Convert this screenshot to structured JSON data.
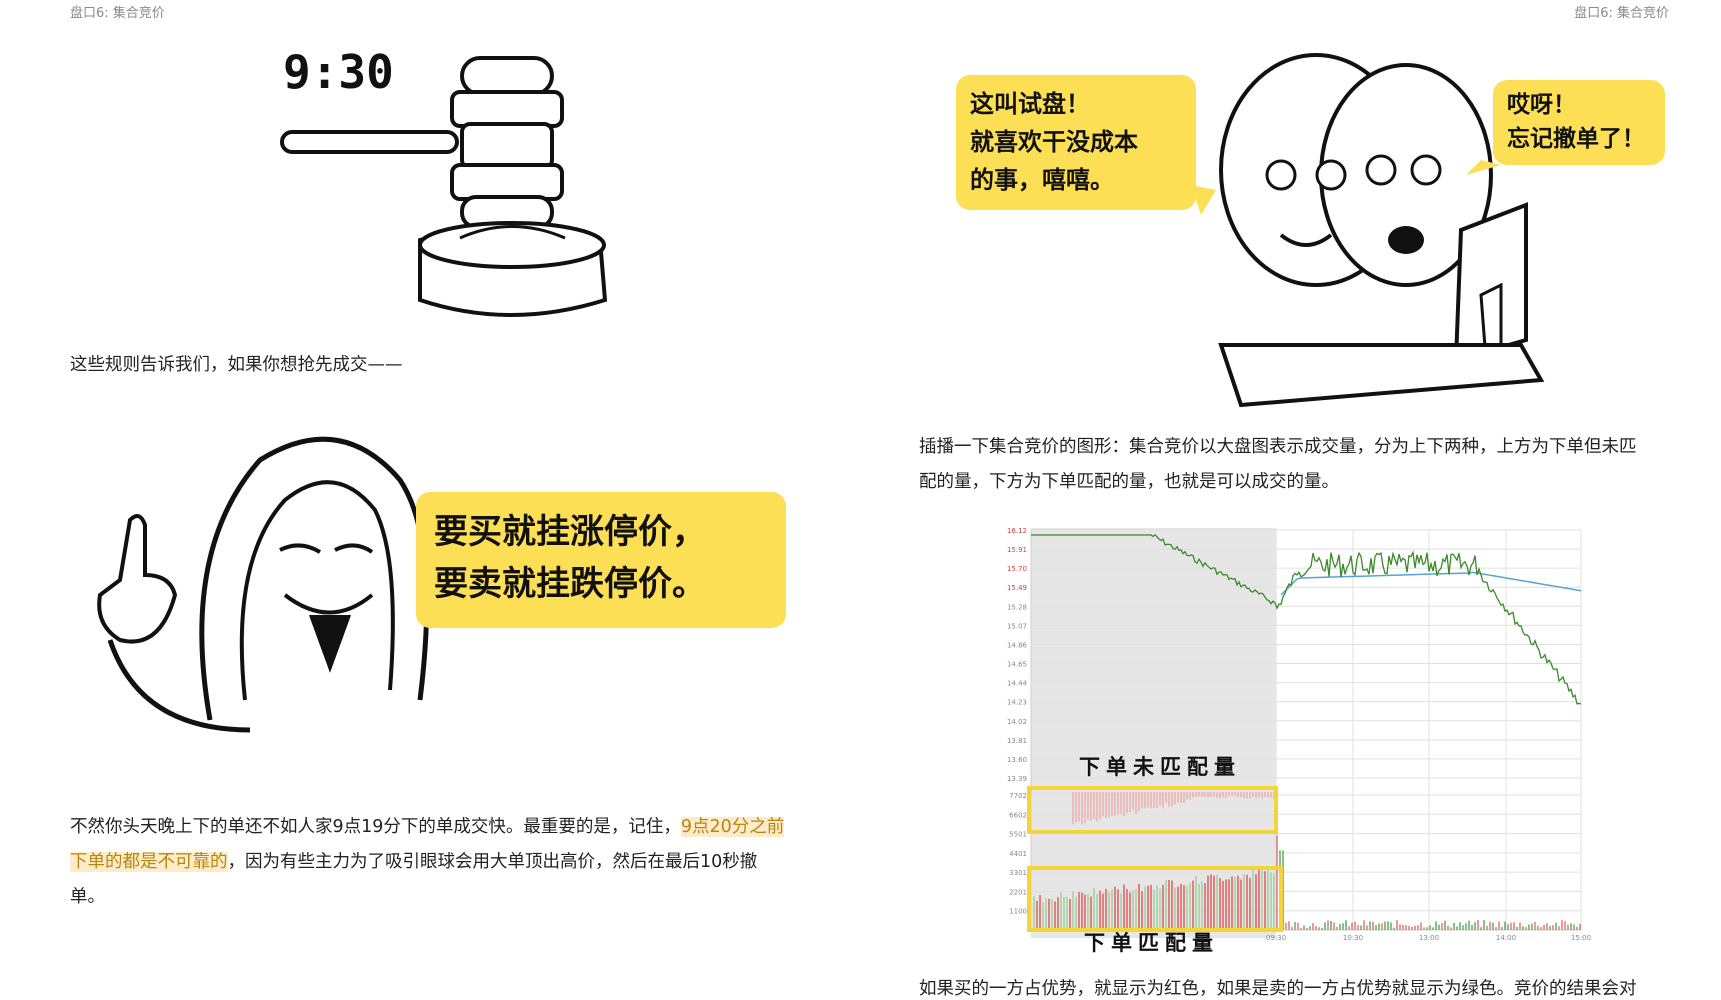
{
  "header": {
    "left_title": "盘口6: 集合竞价",
    "right_title": "盘口6: 集合竞价"
  },
  "left": {
    "gavel_time": "9:30",
    "para1": "这些规则告诉我们，如果你想抢先成交——",
    "hacker_bubble": {
      "line1": "要买就挂涨停价，",
      "line2": "要卖就挂跌停价。"
    },
    "para2": {
      "line1_a": "不然你头天晚上下的单还不如人家9点19分下的单成交快。最重要的是，记住，",
      "line1_hl": "9点20分之前",
      "line2_hl": "下单的都是不可靠的",
      "line2_b": "，因为有些主力为了吸引眼球会用大单顶出高价，然后在最后10秒撤",
      "line3": "单。"
    }
  },
  "right": {
    "bubble_left": {
      "line1": "这叫试盘！",
      "line2": "就喜欢干没成本",
      "line3": "的事，嘻嘻。"
    },
    "bubble_right": {
      "line1": "哎呀！",
      "line2": "忘记撤单了！"
    },
    "para1": {
      "line1": "插播一下集合竞价的图形：集合竞价以大盘图表示成交量，分为上下两种，上方为下单但未匹",
      "line2": "配的量，下方为下单匹配的量，也就是可以成交的量。"
    },
    "para2": "如果买的一方占优势，就显示为红色，如果是卖的一方占优势就显示为绿色。竞价的结果会对"
  },
  "chart_data": {
    "type": "line",
    "y_price_ticks": [
      "16.12",
      "15.91",
      "15.70",
      "15.49",
      "15.28",
      "15.07",
      "14.86",
      "14.65",
      "14.44",
      "14.23",
      "14.02",
      "13.81",
      "13.60",
      "13.39"
    ],
    "y_volume_ticks": [
      "7702",
      "6602",
      "5501",
      "4401",
      "3301",
      "2201",
      "1100"
    ],
    "x_ticks": [
      "09:30",
      "10:30",
      "13:00",
      "14:00",
      "15:00"
    ],
    "annotation_unmatched": "下单未匹配量",
    "annotation_matched": "下单匹配量",
    "colors": {
      "price": "#3a8a2a",
      "avg": "#5aa0d8",
      "buy": "#e05555",
      "sell": "#3a9a3a",
      "box": "#f3d53a",
      "auction_bg": "#e6e6e6"
    }
  }
}
